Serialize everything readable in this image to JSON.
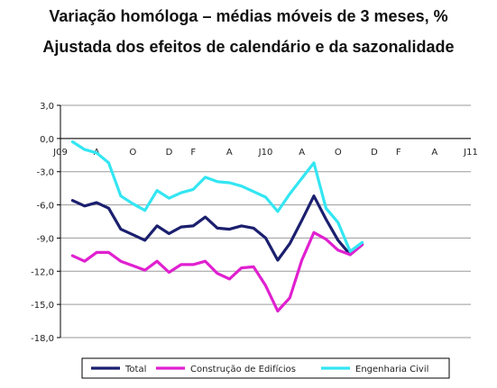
{
  "chart_data": {
    "type": "line",
    "title": "Variação homóloga – médias móveis de 3 meses, %",
    "subtitle": "Ajustada dos efeitos de calendário e da sazonalidade",
    "xlabel": "",
    "ylabel": "",
    "ylim": [
      -18,
      3
    ],
    "y_ticks": [
      "3,0",
      "0,0",
      "-3,0",
      "-6,0",
      "-9,0",
      "-12,0",
      "-15,0",
      "-18,0"
    ],
    "y_tick_values": [
      3,
      0,
      -3,
      -6,
      -9,
      -12,
      -15,
      -18
    ],
    "x_tick_labels": [
      {
        "index": 0,
        "label": "J09"
      },
      {
        "index": 3,
        "label": "A"
      },
      {
        "index": 6,
        "label": "O"
      },
      {
        "index": 9,
        "label": "D"
      },
      {
        "index": 11,
        "label": "F"
      },
      {
        "index": 14,
        "label": "A"
      },
      {
        "index": 17,
        "label": "J10"
      },
      {
        "index": 20,
        "label": "A"
      },
      {
        "index": 23,
        "label": "O"
      },
      {
        "index": 26,
        "label": "D"
      },
      {
        "index": 28,
        "label": "F"
      },
      {
        "index": 31,
        "label": "A"
      },
      {
        "index": 34,
        "label": "J11"
      }
    ],
    "grid": "horizontal",
    "legend_position": "bottom",
    "series": [
      {
        "name": "Total",
        "color": "#1b1f6e",
        "values": [
          -5.6,
          -6.1,
          -5.8,
          -6.3,
          -8.2,
          -8.7,
          -9.2,
          -7.9,
          -8.6,
          -8.0,
          -7.9,
          -7.1,
          -8.1,
          -8.2,
          -7.9,
          -8.1,
          -9.0,
          -11.0,
          -9.5,
          -7.4,
          -5.2,
          -7.3,
          -9.2,
          -10.5,
          -9.6
        ]
      },
      {
        "name": "Construção de Edifícios",
        "color": "#e020d0",
        "values": [
          -10.6,
          -11.1,
          -10.3,
          -10.3,
          -11.1,
          -11.5,
          -11.9,
          -11.1,
          -12.1,
          -11.4,
          -11.4,
          -11.1,
          -12.2,
          -12.7,
          -11.7,
          -11.6,
          -13.3,
          -15.6,
          -14.4,
          -11.0,
          -8.5,
          -9.1,
          -10.1,
          -10.5,
          -9.6
        ]
      },
      {
        "name": "Engenharia Civil",
        "color": "#33e6f2",
        "values": [
          -0.3,
          -1.0,
          -1.3,
          -2.2,
          -5.2,
          -5.9,
          -6.5,
          -4.7,
          -5.4,
          -4.9,
          -4.6,
          -3.5,
          -3.9,
          -4.0,
          -4.3,
          -4.8,
          -5.3,
          -6.6,
          -5.0,
          -3.6,
          -2.2,
          -6.3,
          -7.6,
          -10.2,
          -9.4
        ]
      }
    ],
    "x_count": 35,
    "series_x_start": 1
  }
}
